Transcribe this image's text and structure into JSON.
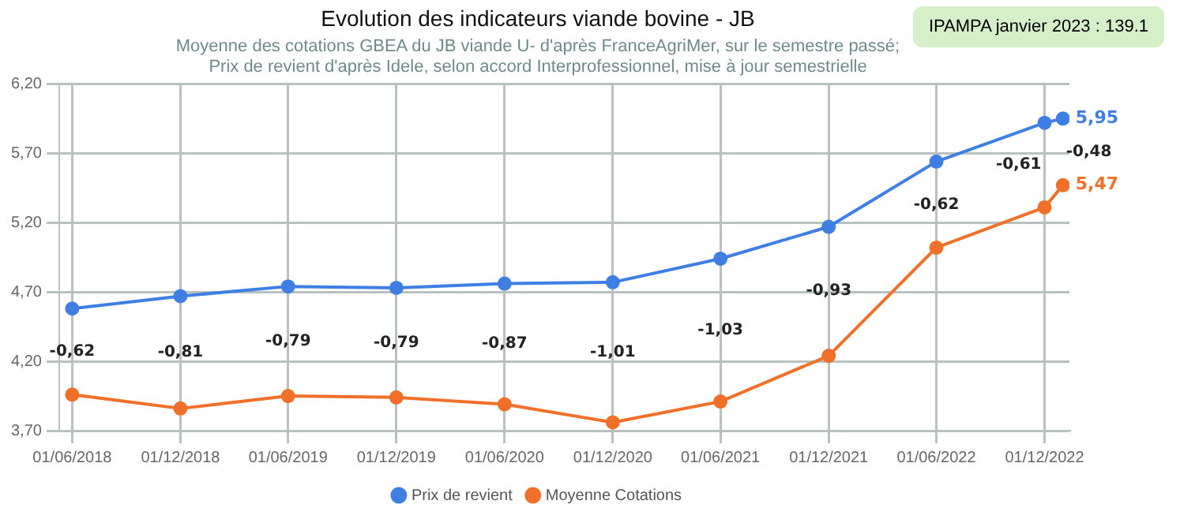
{
  "chart_data": {
    "type": "line",
    "title": "Evolution des indicateurs viande bovine - JB",
    "subtitle": "Moyenne des cotations GBEA du JB viande U- d'après FranceAgriMer, sur le semestre passé;\nPrix de revient d'après Idele, selon accord Interprofessionnel, mise à jour semestrielle",
    "x": [
      "2018-06-01",
      "2018-12-01",
      "2019-06-01",
      "2019-12-01",
      "2020-06-01",
      "2020-12-01",
      "2021-06-01",
      "2021-12-01",
      "2022-06-01",
      "2022-12-01",
      "2023-01-01"
    ],
    "series": [
      {
        "name": "Prix de revient",
        "color": "#3f7fe4",
        "values": [
          4.58,
          4.67,
          4.74,
          4.73,
          4.76,
          4.77,
          4.94,
          5.17,
          5.64,
          5.92,
          5.95
        ],
        "value_labels": [
          null,
          null,
          null,
          null,
          null,
          null,
          null,
          null,
          null,
          null,
          "5,95"
        ]
      },
      {
        "name": "Moyenne Cotations",
        "color": "#f0702a",
        "values": [
          3.96,
          3.86,
          3.95,
          3.94,
          3.89,
          3.76,
          3.91,
          4.24,
          5.02,
          5.31,
          5.47
        ],
        "value_labels": [
          null,
          null,
          null,
          null,
          null,
          null,
          null,
          null,
          null,
          null,
          "5,47"
        ]
      }
    ],
    "xlim": [
      "2018-05-10",
      "2023-01-12"
    ],
    "xticks": [
      {
        "value": "2018-06-01",
        "label": "01/06/2018"
      },
      {
        "value": "2018-12-01",
        "label": "01/12/2018"
      },
      {
        "value": "2019-06-01",
        "label": "01/06/2019"
      },
      {
        "value": "2019-12-01",
        "label": "01/12/2019"
      },
      {
        "value": "2020-06-01",
        "label": "01/06/2020"
      },
      {
        "value": "2020-12-01",
        "label": "01/12/2020"
      },
      {
        "value": "2021-06-01",
        "label": "01/06/2021"
      },
      {
        "value": "2021-12-01",
        "label": "01/12/2021"
      },
      {
        "value": "2022-06-01",
        "label": "01/06/2022"
      },
      {
        "value": "2022-12-01",
        "label": "01/12/2022"
      }
    ],
    "ylim": [
      3.7,
      6.2
    ],
    "yticks": [
      {
        "value": 3.7,
        "label": "3,70"
      },
      {
        "value": 4.2,
        "label": "4,20"
      },
      {
        "value": 4.7,
        "label": "4,70"
      },
      {
        "value": 5.2,
        "label": "5,20"
      },
      {
        "value": 5.7,
        "label": "5,70"
      },
      {
        "value": 6.2,
        "label": "6,20"
      }
    ],
    "annotations": [
      "IPAMPA janvier 2023 : 139.1",
      "-0,62",
      "-0,81",
      "-0,79",
      "-0,79",
      "-0,87",
      "-1,01",
      "-1,03",
      "-0,93",
      "-0,62",
      "-0,61",
      "-0,48"
    ],
    "grid": true,
    "legend": "bottom",
    "marker": "circle",
    "line_style": "solid"
  }
}
